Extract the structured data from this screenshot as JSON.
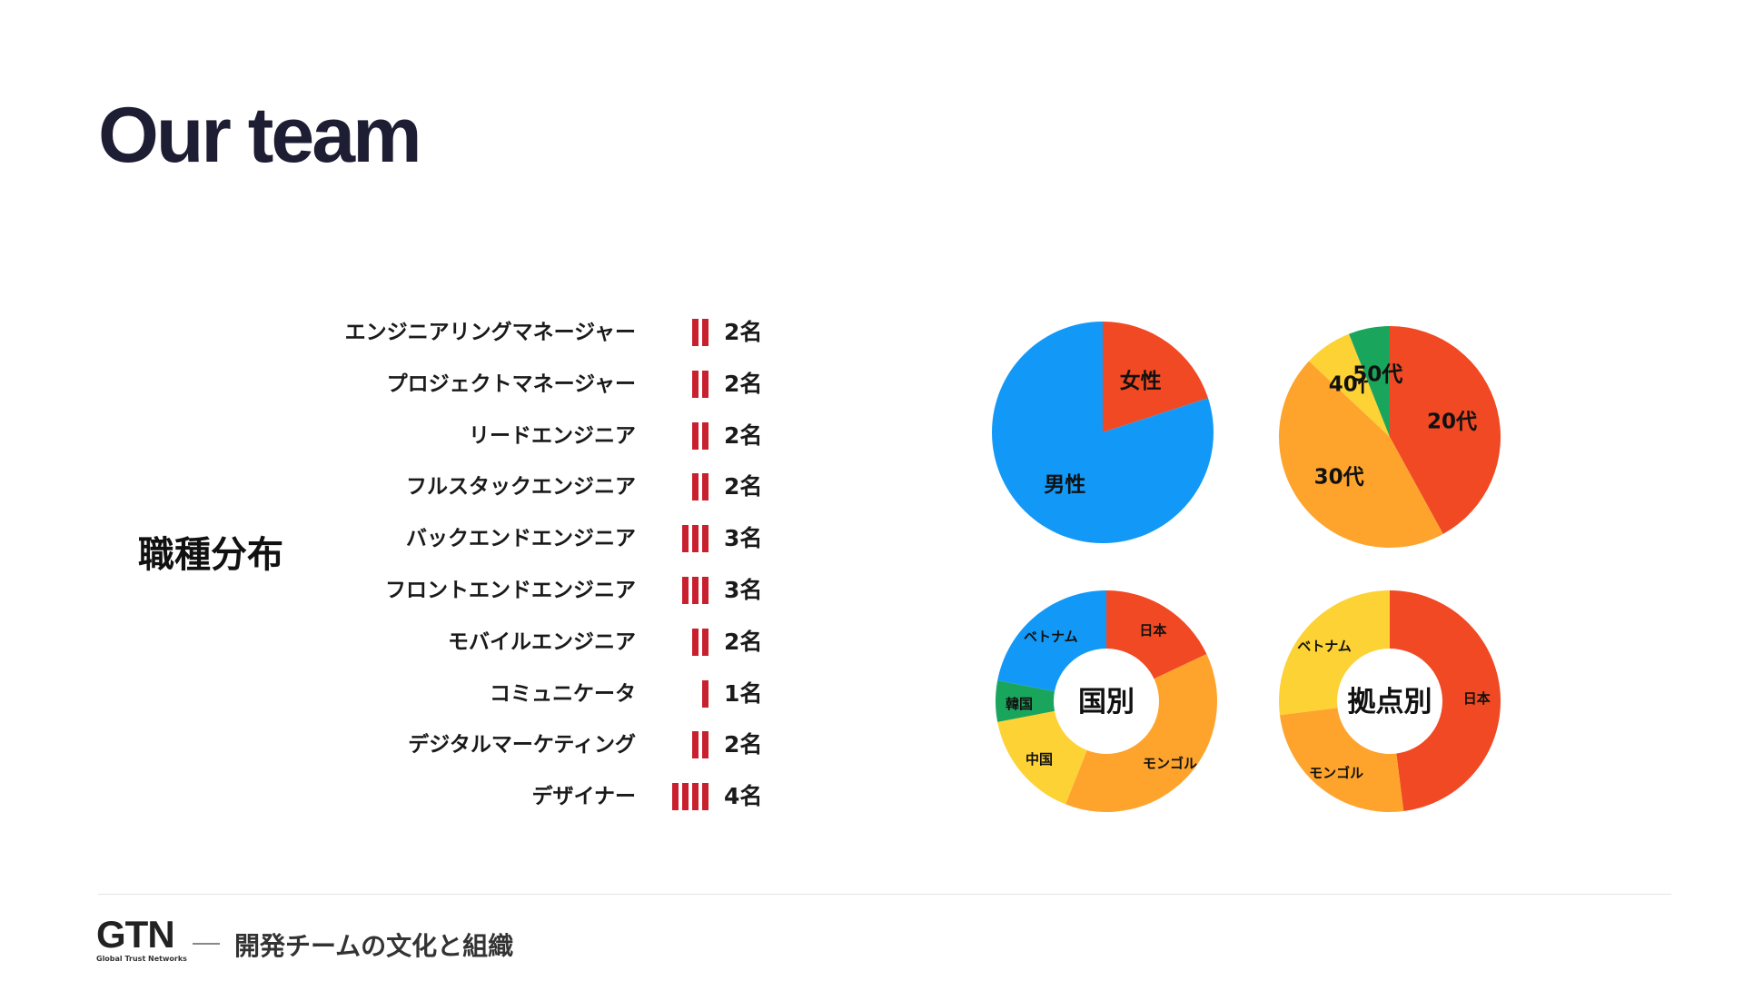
{
  "title": "Our team",
  "section_label": "職種分布",
  "roles": [
    {
      "name": "エンジニアリングマネージャー",
      "count": 2,
      "count_label": "2名"
    },
    {
      "name": "プロジェクトマネージャー",
      "count": 2,
      "count_label": "2名"
    },
    {
      "name": "リードエンジニア",
      "count": 2,
      "count_label": "2名"
    },
    {
      "name": "フルスタックエンジニア",
      "count": 2,
      "count_label": "2名"
    },
    {
      "name": "バックエンドエンジニア",
      "count": 3,
      "count_label": "3名"
    },
    {
      "name": "フロントエンドエンジニア",
      "count": 3,
      "count_label": "3名"
    },
    {
      "name": "モバイルエンジニア",
      "count": 2,
      "count_label": "2名"
    },
    {
      "name": "コミュニケータ",
      "count": 1,
      "count_label": "1名"
    },
    {
      "name": "デジタルマーケティング",
      "count": 2,
      "count_label": "2名"
    },
    {
      "name": "デザイナー",
      "count": 4,
      "count_label": "4名"
    }
  ],
  "bar_color": "#c8202f",
  "chart_data": [
    {
      "type": "pie",
      "center_label": "",
      "slices": [
        {
          "label": "女性",
          "value": 20,
          "color": "#f04923"
        },
        {
          "label": "男性",
          "value": 80,
          "color": "#1299f7"
        }
      ]
    },
    {
      "type": "pie",
      "center_label": "",
      "slices": [
        {
          "label": "20代",
          "value": 42,
          "color": "#f04923"
        },
        {
          "label": "30代",
          "value": 45,
          "color": "#fea42c"
        },
        {
          "label": "40代",
          "value": 7,
          "color": "#fdd235"
        },
        {
          "label": "50代",
          "value": 6,
          "color": "#1aa55c"
        }
      ]
    },
    {
      "type": "pie",
      "center_label": "国別",
      "slices": [
        {
          "label": "日本",
          "value": 18,
          "color": "#f04923"
        },
        {
          "label": "モンゴル",
          "value": 38,
          "color": "#fea42c"
        },
        {
          "label": "中国",
          "value": 16,
          "color": "#fdd235"
        },
        {
          "label": "韓国",
          "value": 6,
          "color": "#1aa55c"
        },
        {
          "label": "ベトナム",
          "value": 22,
          "color": "#1299f7"
        }
      ]
    },
    {
      "type": "pie",
      "center_label": "拠点別",
      "slices": [
        {
          "label": "日本",
          "value": 48,
          "color": "#f04923"
        },
        {
          "label": "モンゴル",
          "value": 25,
          "color": "#fea42c"
        },
        {
          "label": "ベトナム",
          "value": 27,
          "color": "#fdd235"
        }
      ]
    }
  ],
  "footer": {
    "logo": "GTN",
    "logo_subtitle": "Global Trust Networks",
    "text": "開発チームの文化と組織"
  }
}
